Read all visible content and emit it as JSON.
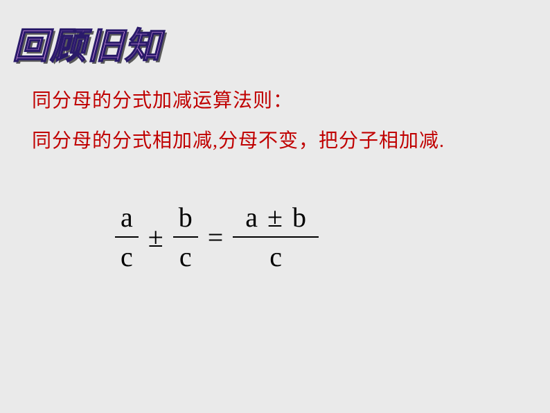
{
  "title": "回顾旧知",
  "heading1": "同分母的分式加减运算法则：",
  "heading2": "同分母的分式相加减,分母不变，把分子相加减.",
  "formula": {
    "frac1": {
      "num": "a",
      "den": "c"
    },
    "op1": "±",
    "frac2": {
      "num": "b",
      "den": "c"
    },
    "eq": "=",
    "result": {
      "num_left": "a",
      "num_op": "±",
      "num_right": "b",
      "den": "c"
    }
  },
  "colors": {
    "background": "#eaeaea",
    "heading": "#c00000",
    "title_fill": "#d896e8",
    "title_stroke": "#2a1a6a",
    "formula": "#000000"
  },
  "fonts": {
    "title_size": 52,
    "heading_size": 28,
    "formula_size": 40
  }
}
